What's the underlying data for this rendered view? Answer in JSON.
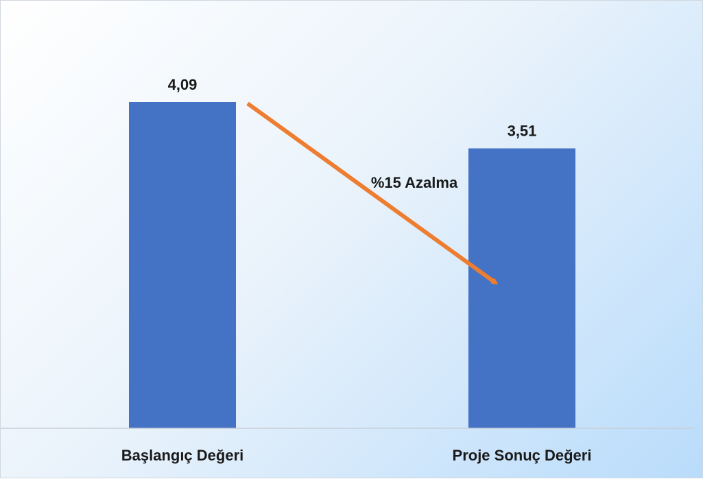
{
  "chart_data": {
    "type": "bar",
    "categories": [
      "Başlangıç Değeri",
      "Proje Sonuç Değeri"
    ],
    "values": [
      4.09,
      3.51
    ],
    "data_labels": [
      "4,09",
      "3,51"
    ],
    "annotation": "%15 Azalma",
    "ylim": [
      0,
      4.09
    ],
    "grid": false,
    "legend": "none",
    "bar_color": "#4472C4",
    "arrow_color": "#ED7D31",
    "title": "",
    "xlabel": "",
    "ylabel": ""
  }
}
